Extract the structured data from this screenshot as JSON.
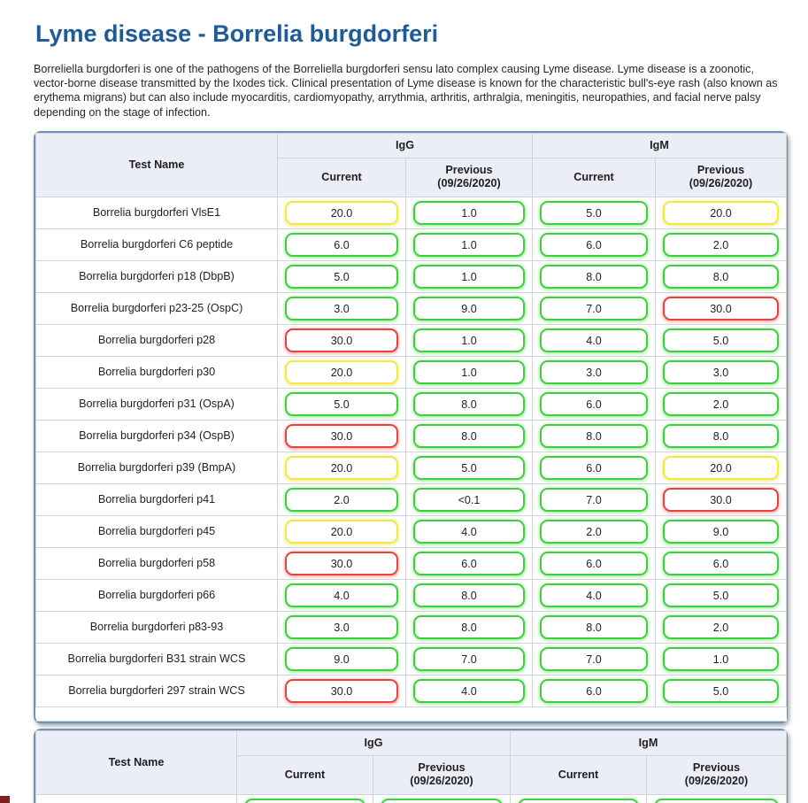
{
  "page": {
    "title": "Lyme disease - Borrelia burgdorferi",
    "description": "Borreliella burgdorferi is one of the pathogens of the Borreliella burgdorferi sensu lato complex causing Lyme disease. Lyme disease is a zoonotic, vector-borne disease transmitted by the Ixodes tick. Clinical presentation of Lyme disease is known for the characteristic bull's-eye rash (also known as erythema migrans) but can also include myocarditis, cardiomyopathy, arrythmia, arthritis, arthralgia, meningitis, neuropathies, and facial nerve palsy depending on the stage of infection."
  },
  "colors": {
    "title_blue": "#1e5b97",
    "table_border_blue": "#6e92b4",
    "header_bg": "#ebeef7",
    "grid_line": "#cfd4dc",
    "result_normal_green": "#3ecf3e",
    "result_elevated_yellow": "#f2e93c",
    "result_high_red": "#e8413e"
  },
  "table_headers": {
    "test_name": "Test Name",
    "igg": "IgG",
    "igm": "IgM",
    "current": "Current",
    "previous": "Previous",
    "previous_date": "(09/26/2020)"
  },
  "table1": {
    "rows": [
      {
        "name": "Borrelia burgdorferi VlsE1",
        "cells": [
          {
            "value": "20.0",
            "level": "elevated"
          },
          {
            "value": "1.0",
            "level": "normal"
          },
          {
            "value": "5.0",
            "level": "normal"
          },
          {
            "value": "20.0",
            "level": "elevated"
          }
        ]
      },
      {
        "name": "Borrelia burgdorferi C6 peptide",
        "cells": [
          {
            "value": "6.0",
            "level": "normal"
          },
          {
            "value": "1.0",
            "level": "normal"
          },
          {
            "value": "6.0",
            "level": "normal"
          },
          {
            "value": "2.0",
            "level": "normal"
          }
        ]
      },
      {
        "name": "Borrelia burgdorferi p18 (DbpB)",
        "cells": [
          {
            "value": "5.0",
            "level": "normal"
          },
          {
            "value": "1.0",
            "level": "normal"
          },
          {
            "value": "8.0",
            "level": "normal"
          },
          {
            "value": "8.0",
            "level": "normal"
          }
        ]
      },
      {
        "name": "Borrelia burgdorferi p23-25 (OspC)",
        "cells": [
          {
            "value": "3.0",
            "level": "normal"
          },
          {
            "value": "9.0",
            "level": "normal"
          },
          {
            "value": "7.0",
            "level": "normal"
          },
          {
            "value": "30.0",
            "level": "high"
          }
        ]
      },
      {
        "name": "Borrelia burgdorferi p28",
        "cells": [
          {
            "value": "30.0",
            "level": "high"
          },
          {
            "value": "1.0",
            "level": "normal"
          },
          {
            "value": "4.0",
            "level": "normal"
          },
          {
            "value": "5.0",
            "level": "normal"
          }
        ]
      },
      {
        "name": "Borrelia burgdorferi p30",
        "cells": [
          {
            "value": "20.0",
            "level": "elevated"
          },
          {
            "value": "1.0",
            "level": "normal"
          },
          {
            "value": "3.0",
            "level": "normal"
          },
          {
            "value": "3.0",
            "level": "normal"
          }
        ]
      },
      {
        "name": "Borrelia burgdorferi p31 (OspA)",
        "cells": [
          {
            "value": "5.0",
            "level": "normal"
          },
          {
            "value": "8.0",
            "level": "normal"
          },
          {
            "value": "6.0",
            "level": "normal"
          },
          {
            "value": "2.0",
            "level": "normal"
          }
        ]
      },
      {
        "name": "Borrelia burgdorferi p34 (OspB)",
        "cells": [
          {
            "value": "30.0",
            "level": "high"
          },
          {
            "value": "8.0",
            "level": "normal"
          },
          {
            "value": "8.0",
            "level": "normal"
          },
          {
            "value": "8.0",
            "level": "normal"
          }
        ]
      },
      {
        "name": "Borrelia burgdorferi p39 (BmpA)",
        "cells": [
          {
            "value": "20.0",
            "level": "elevated"
          },
          {
            "value": "5.0",
            "level": "normal"
          },
          {
            "value": "6.0",
            "level": "normal"
          },
          {
            "value": "20.0",
            "level": "elevated"
          }
        ]
      },
      {
        "name": "Borrelia burgdorferi p41",
        "cells": [
          {
            "value": "2.0",
            "level": "normal"
          },
          {
            "value": "<0.1",
            "level": "normal"
          },
          {
            "value": "7.0",
            "level": "normal"
          },
          {
            "value": "30.0",
            "level": "high"
          }
        ]
      },
      {
        "name": "Borrelia burgdorferi p45",
        "cells": [
          {
            "value": "20.0",
            "level": "elevated"
          },
          {
            "value": "4.0",
            "level": "normal"
          },
          {
            "value": "2.0",
            "level": "normal"
          },
          {
            "value": "9.0",
            "level": "normal"
          }
        ]
      },
      {
        "name": "Borrelia burgdorferi p58",
        "cells": [
          {
            "value": "30.0",
            "level": "high"
          },
          {
            "value": "6.0",
            "level": "normal"
          },
          {
            "value": "6.0",
            "level": "normal"
          },
          {
            "value": "6.0",
            "level": "normal"
          }
        ]
      },
      {
        "name": "Borrelia burgdorferi p66",
        "cells": [
          {
            "value": "4.0",
            "level": "normal"
          },
          {
            "value": "8.0",
            "level": "normal"
          },
          {
            "value": "4.0",
            "level": "normal"
          },
          {
            "value": "5.0",
            "level": "normal"
          }
        ]
      },
      {
        "name": "Borrelia burgdorferi p83-93",
        "cells": [
          {
            "value": "3.0",
            "level": "normal"
          },
          {
            "value": "8.0",
            "level": "normal"
          },
          {
            "value": "8.0",
            "level": "normal"
          },
          {
            "value": "2.0",
            "level": "normal"
          }
        ]
      },
      {
        "name": "Borrelia burgdorferi B31 strain WCS",
        "cells": [
          {
            "value": "9.0",
            "level": "normal"
          },
          {
            "value": "7.0",
            "level": "normal"
          },
          {
            "value": "7.0",
            "level": "normal"
          },
          {
            "value": "1.0",
            "level": "normal"
          }
        ]
      },
      {
        "name": "Borrelia burgdorferi 297 strain WCS",
        "cells": [
          {
            "value": "30.0",
            "level": "high"
          },
          {
            "value": "4.0",
            "level": "normal"
          },
          {
            "value": "6.0",
            "level": "normal"
          },
          {
            "value": "5.0",
            "level": "normal"
          }
        ]
      }
    ]
  },
  "table2": {
    "partial_row": {
      "name": "",
      "cells": [
        {
          "value": "",
          "level": "normal"
        },
        {
          "value": "",
          "level": "normal"
        },
        {
          "value": "",
          "level": "normal"
        },
        {
          "value": "",
          "level": "normal"
        }
      ]
    }
  }
}
